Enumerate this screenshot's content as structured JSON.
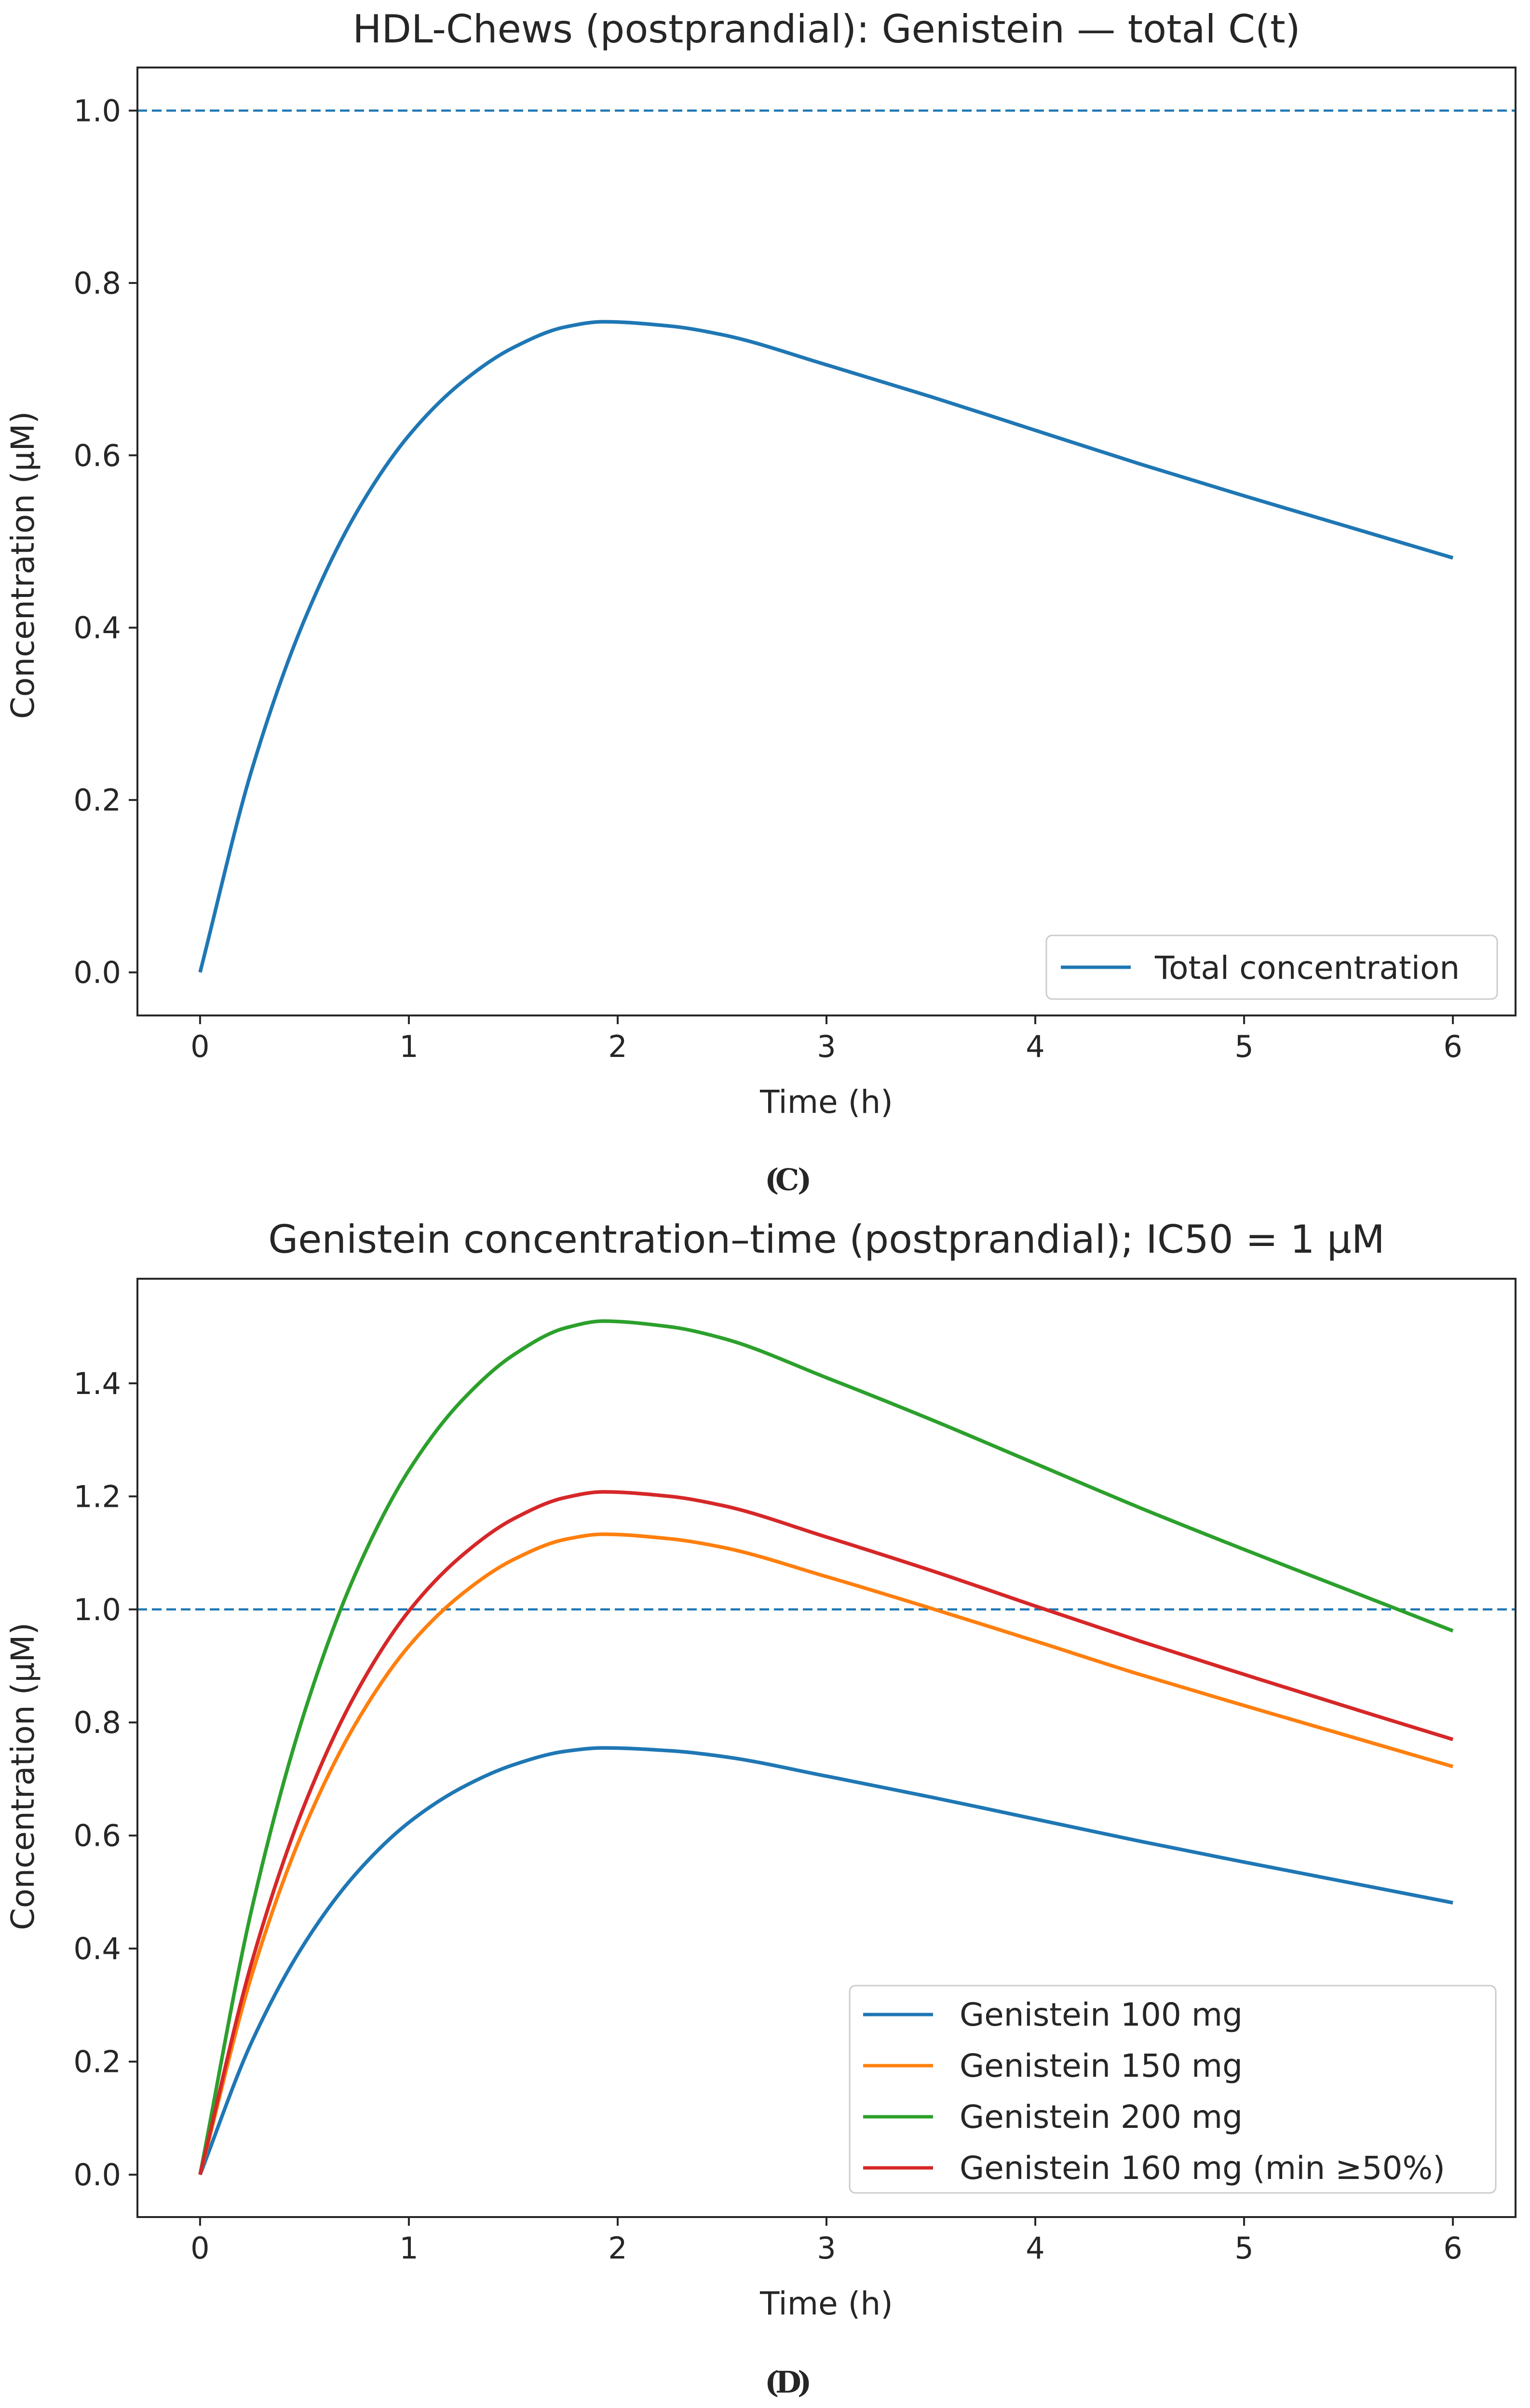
{
  "chart_data": [
    {
      "type": "line",
      "title": "HDL-Chews (postprandial): Genistein — total C(t)",
      "xlabel": "Time (h)",
      "ylabel": "Concentration (µM)",
      "xlim": [
        -0.3,
        6.3
      ],
      "ylim": [
        -0.05,
        1.05
      ],
      "xticks": [
        0,
        1,
        2,
        3,
        4,
        5,
        6
      ],
      "xtick_labels": [
        "0",
        "1",
        "2",
        "3",
        "4",
        "5",
        "6"
      ],
      "yticks": [
        0.0,
        0.2,
        0.4,
        0.6,
        0.8,
        1.0
      ],
      "ytick_labels": [
        "0.0",
        "0.2",
        "0.4",
        "0.6",
        "0.8",
        "1.0"
      ],
      "grid": false,
      "reference_line": {
        "y": 1.0,
        "style": "dashed",
        "color": "#1f77b4"
      },
      "legend_position": "lower-right",
      "panel_label": "C",
      "series": [
        {
          "name": "Total concentration",
          "color": "#1f77b4",
          "x": [
            0,
            0.25,
            0.5,
            0.75,
            1.0,
            1.25,
            1.5,
            1.75,
            1.93,
            2.25,
            2.5,
            3.0,
            3.5,
            4.0,
            4.5,
            5.0,
            5.5,
            6.0
          ],
          "y": [
            0.0,
            0.237,
            0.409,
            0.534,
            0.623,
            0.684,
            0.725,
            0.749,
            0.755,
            0.75,
            0.74,
            0.705,
            0.668,
            0.629,
            0.59,
            0.553,
            0.517,
            0.481
          ]
        }
      ]
    },
    {
      "type": "line",
      "title": "Genistein concentration–time (postprandial); IC50 = 1 µM",
      "xlabel": "Time (h)",
      "ylabel": "Concentration (µM)",
      "xlim": [
        -0.3,
        6.3
      ],
      "ylim": [
        -0.075,
        1.585
      ],
      "xticks": [
        0,
        1,
        2,
        3,
        4,
        5,
        6
      ],
      "xtick_labels": [
        "0",
        "1",
        "2",
        "3",
        "4",
        "5",
        "6"
      ],
      "yticks": [
        0.0,
        0.2,
        0.4,
        0.6,
        0.8,
        1.0,
        1.2,
        1.4
      ],
      "ytick_labels": [
        "0.0",
        "0.2",
        "0.4",
        "0.6",
        "0.8",
        "1.0",
        "1.2",
        "1.4"
      ],
      "grid": false,
      "reference_line": {
        "y": 1.0,
        "style": "dashed",
        "color": "#1f77b4"
      },
      "legend_position": "lower-right",
      "panel_label": "D",
      "series": [
        {
          "name": "Genistein 100 mg",
          "color": "#1f77b4",
          "x": [
            0,
            0.25,
            0.5,
            0.75,
            1.0,
            1.25,
            1.5,
            1.75,
            1.93,
            2.25,
            2.5,
            3.0,
            3.5,
            4.0,
            4.5,
            5.0,
            5.5,
            6.0
          ],
          "y": [
            0.0,
            0.237,
            0.409,
            0.534,
            0.623,
            0.684,
            0.725,
            0.749,
            0.755,
            0.75,
            0.74,
            0.705,
            0.668,
            0.629,
            0.59,
            0.553,
            0.517,
            0.481
          ]
        },
        {
          "name": "Genistein 150 mg",
          "color": "#ff7f0e",
          "x": [
            0,
            0.25,
            0.5,
            0.75,
            1.0,
            1.25,
            1.5,
            1.75,
            1.93,
            2.25,
            2.5,
            3.0,
            3.5,
            4.0,
            4.5,
            5.0,
            5.5,
            6.0
          ],
          "y": [
            0.0,
            0.356,
            0.614,
            0.801,
            0.935,
            1.026,
            1.088,
            1.124,
            1.133,
            1.125,
            1.11,
            1.058,
            1.002,
            0.944,
            0.885,
            0.83,
            0.776,
            0.722
          ]
        },
        {
          "name": "Genistein 200 mg",
          "color": "#2ca02c",
          "x": [
            0,
            0.25,
            0.5,
            0.75,
            1.0,
            1.25,
            1.5,
            1.75,
            1.93,
            2.25,
            2.5,
            3.0,
            3.5,
            4.0,
            4.5,
            5.0,
            5.5,
            6.0
          ],
          "y": [
            0.0,
            0.474,
            0.818,
            1.068,
            1.246,
            1.368,
            1.45,
            1.498,
            1.51,
            1.5,
            1.48,
            1.41,
            1.336,
            1.258,
            1.18,
            1.106,
            1.034,
            0.962
          ]
        },
        {
          "name": "Genistein 160 mg (min ≥50%)",
          "color": "#d62728",
          "x": [
            0,
            0.25,
            0.5,
            0.75,
            1.0,
            1.25,
            1.5,
            1.75,
            1.93,
            2.25,
            2.5,
            3.0,
            3.5,
            4.0,
            4.5,
            5.0,
            5.5,
            6.0
          ],
          "y": [
            0.0,
            0.379,
            0.654,
            0.854,
            0.997,
            1.094,
            1.16,
            1.198,
            1.208,
            1.2,
            1.184,
            1.128,
            1.069,
            1.006,
            0.944,
            0.885,
            0.827,
            0.77
          ]
        }
      ]
    }
  ]
}
